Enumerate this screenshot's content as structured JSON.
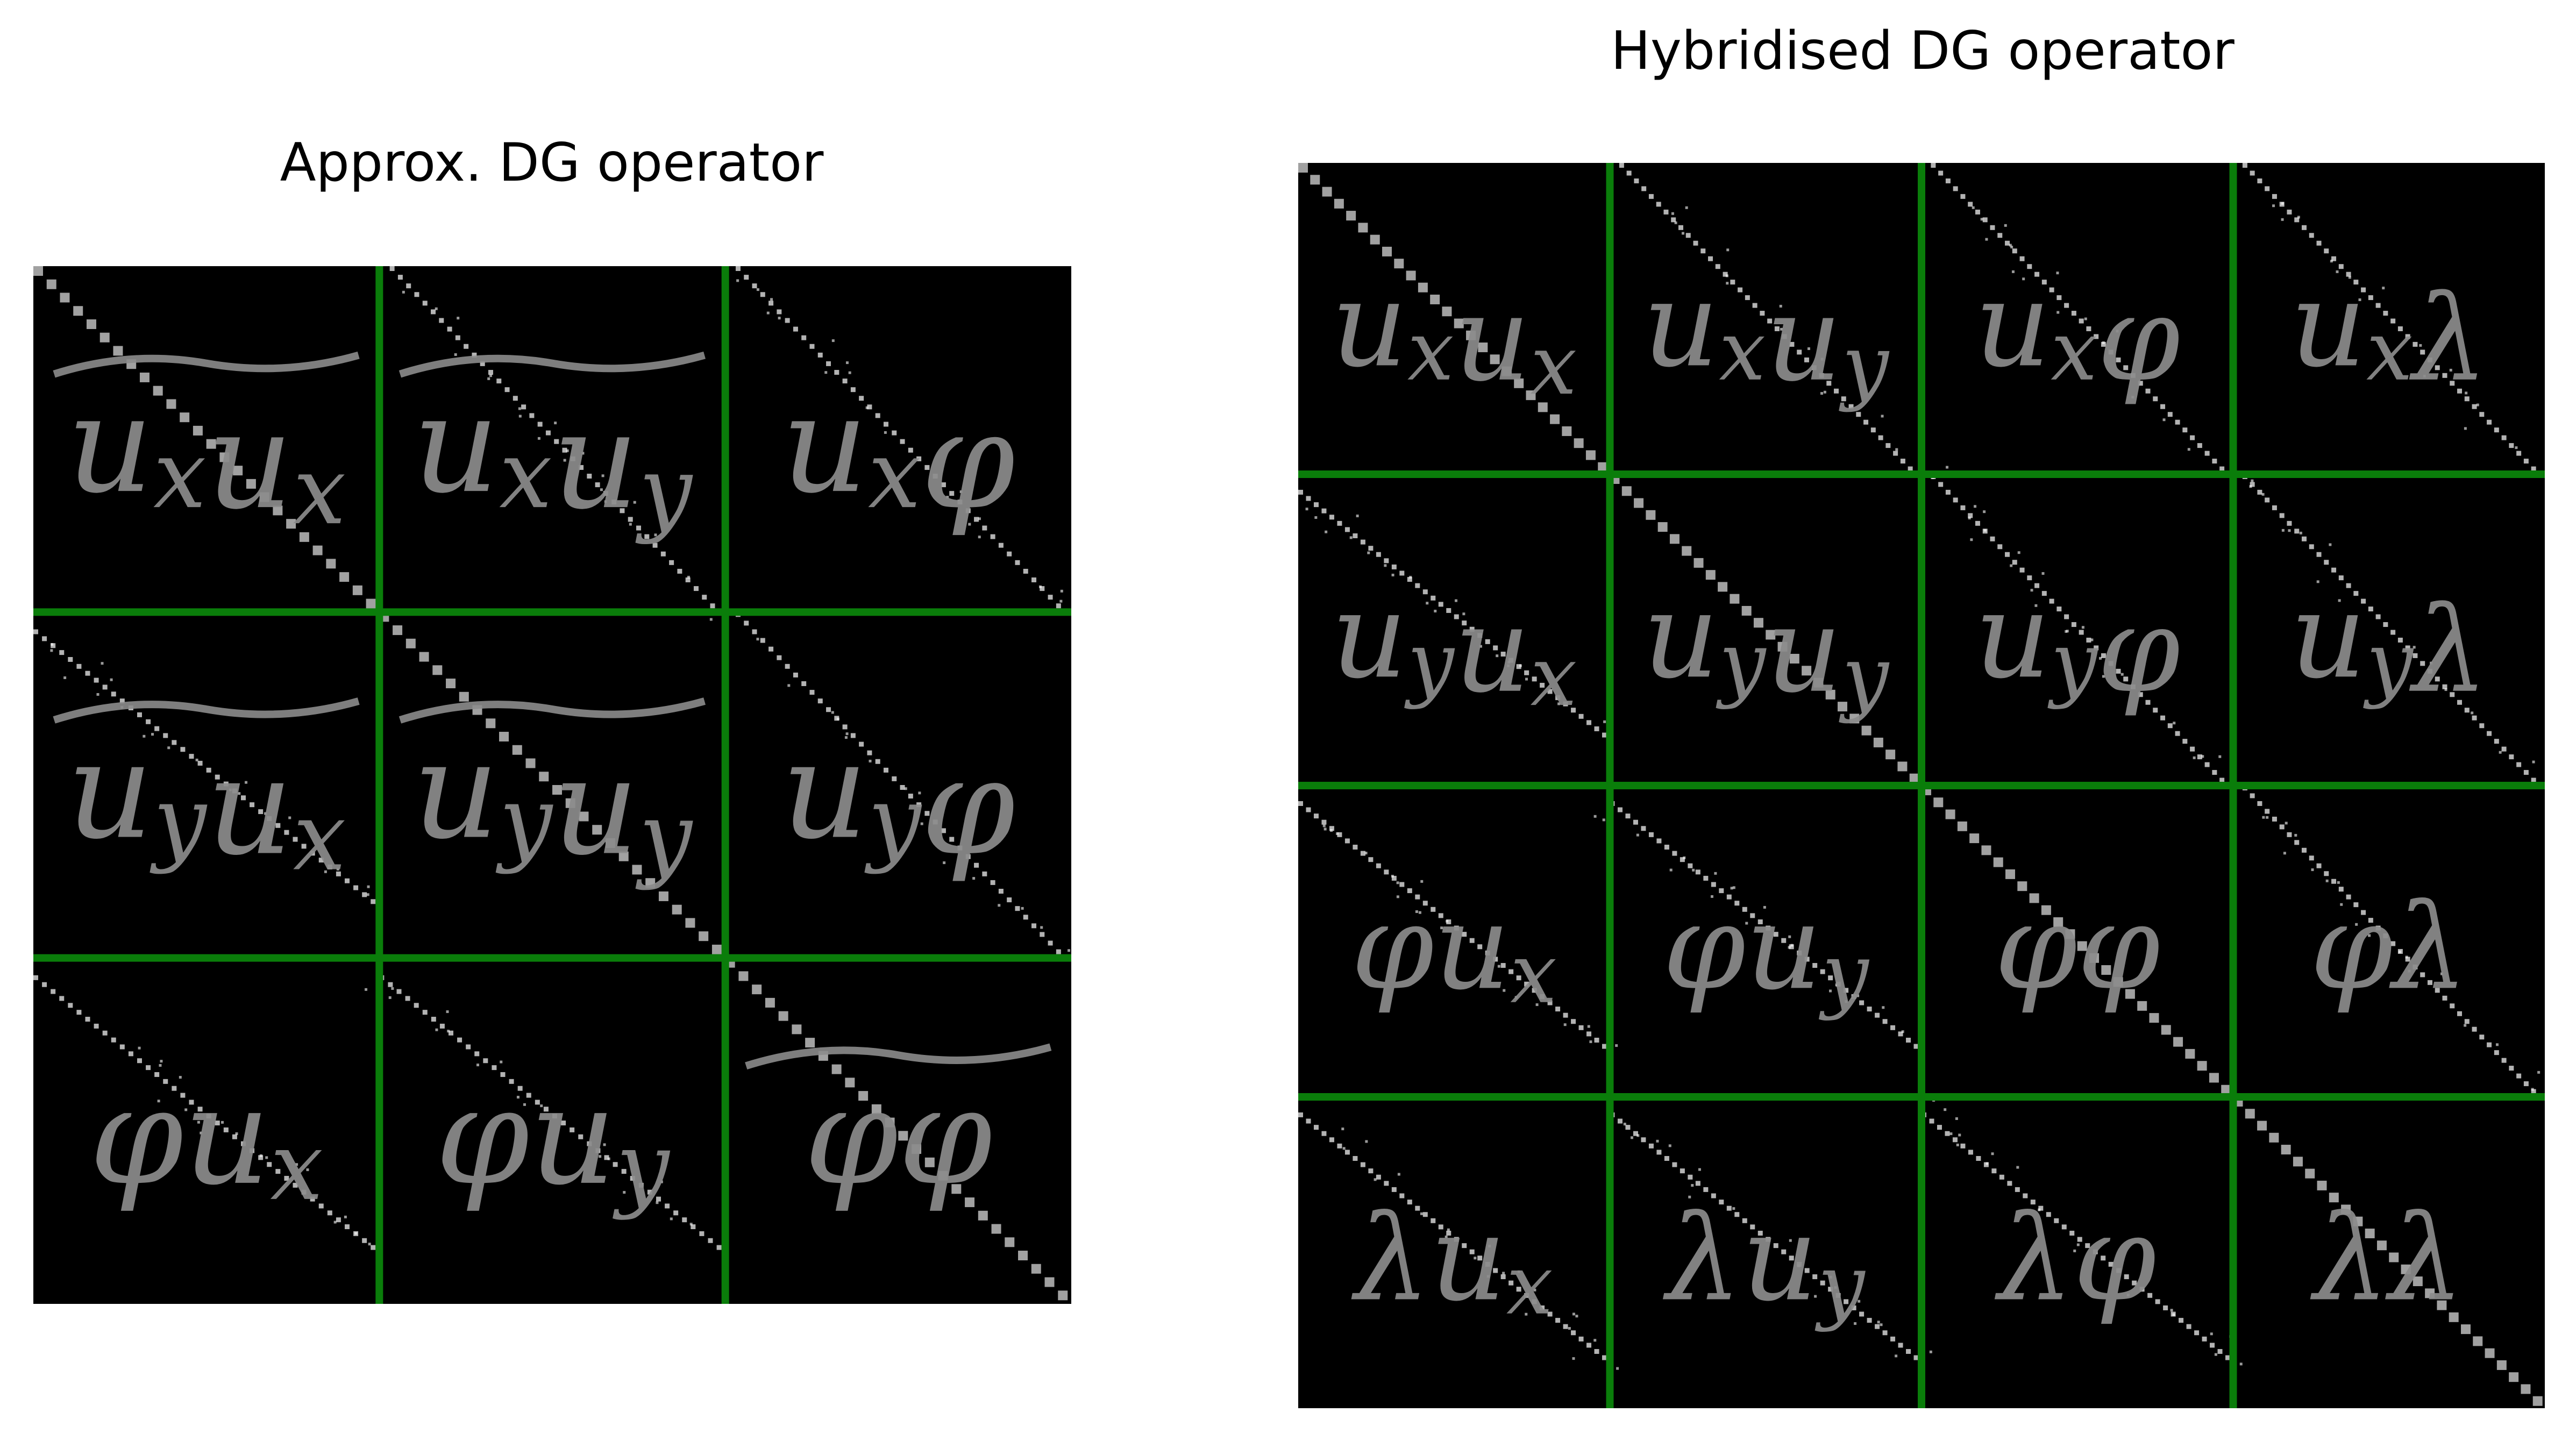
{
  "colors": {
    "background": "#000000",
    "grid": "#0a7d0a",
    "label": "#8c8c8c",
    "dot": "#ffffff"
  },
  "panels": [
    {
      "title": "Approx. DG operator",
      "blocks": [
        [
          "u_x u_x~",
          "u_x u_y~",
          "u_x φ"
        ],
        [
          "u_y u_x~",
          "u_y u_y~",
          "u_y φ"
        ],
        [
          "φ u_x",
          "φ u_y",
          "φ φ~"
        ]
      ]
    },
    {
      "title": "Hybridised DG operator",
      "blocks": [
        [
          "u_x u_x",
          "u_x u_y",
          "u_x φ",
          "u_x λ"
        ],
        [
          "u_y u_x",
          "u_y u_y",
          "u_y φ",
          "u_y λ"
        ],
        [
          "φ u_x",
          "φ u_y",
          "φ φ",
          "φ λ"
        ],
        [
          "λ u_x",
          "λ u_y",
          "λ φ",
          "λ λ"
        ]
      ]
    }
  ]
}
